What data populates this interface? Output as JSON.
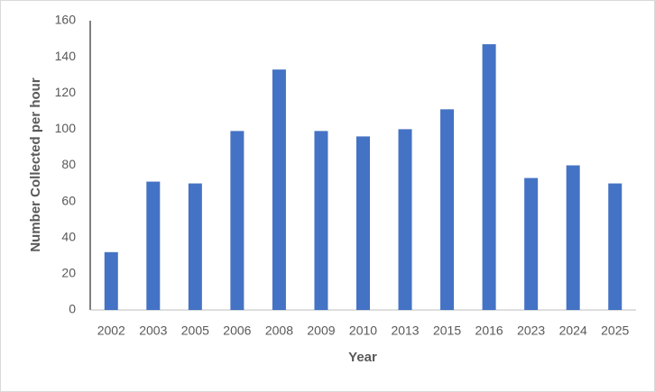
{
  "chart_data": {
    "type": "bar",
    "x_label": "Year",
    "y_label": "Number Collected per hour",
    "categories": [
      "2002",
      "2003",
      "2005",
      "2006",
      "2008",
      "2009",
      "2010",
      "2013",
      "2015",
      "2016",
      "2023",
      "2024",
      "2025"
    ],
    "values": [
      32,
      71,
      70,
      99,
      133,
      99,
      96,
      100,
      111,
      147,
      73,
      80,
      70
    ],
    "color": "#4472c4",
    "ylim": [
      0,
      160
    ],
    "yticks": [
      0,
      20,
      40,
      60,
      80,
      100,
      120,
      140,
      160
    ],
    "grid": false
  }
}
